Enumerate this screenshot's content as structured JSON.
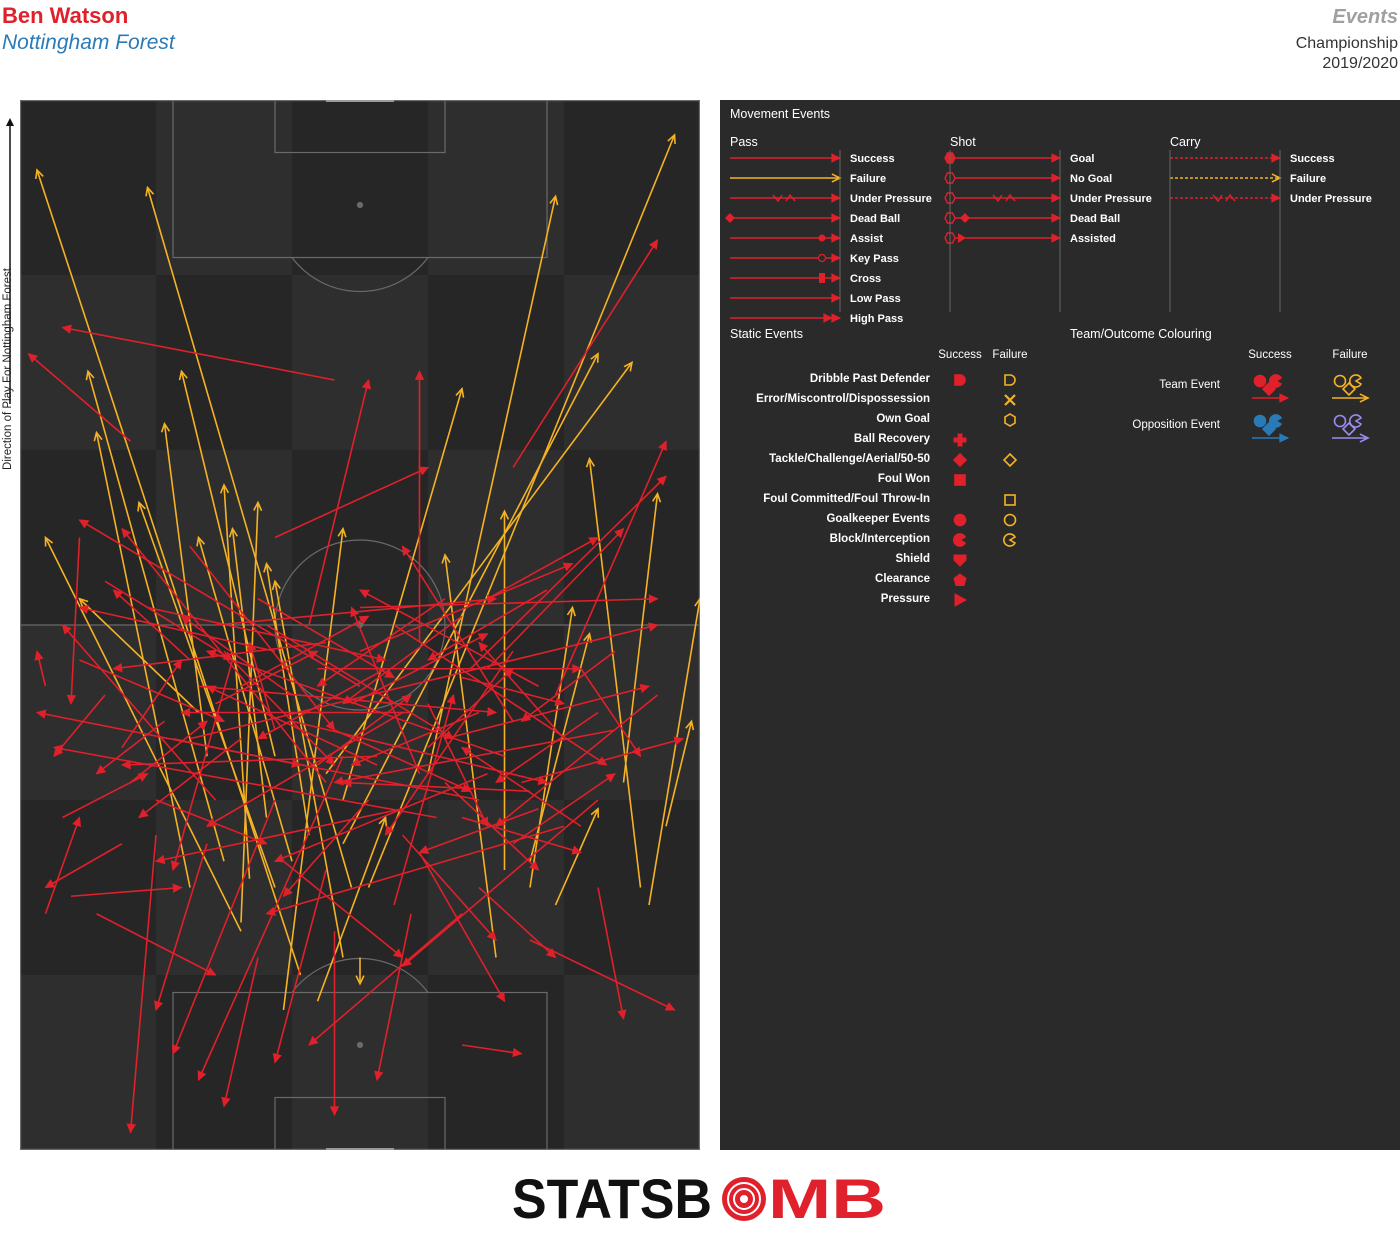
{
  "header": {
    "player": "Ben Watson",
    "team": "Nottingham Forest",
    "title": "Events",
    "competition": "Championship",
    "season": "2019/2020"
  },
  "direction_label": "Direction of Play For Nottingham Forest",
  "legend": {
    "movement_title": "Movement Events",
    "pass": {
      "title": "Pass",
      "items": [
        "Success",
        "Failure",
        "Under Pressure",
        "Dead Ball",
        "Assist",
        "Key Pass",
        "Cross",
        "Low Pass",
        "High Pass"
      ]
    },
    "shot": {
      "title": "Shot",
      "items": [
        "Goal",
        "No Goal",
        "Under Pressure",
        "Dead Ball",
        "Assisted"
      ]
    },
    "carry": {
      "title": "Carry",
      "items": [
        "Success",
        "Failure",
        "Under Pressure"
      ]
    },
    "static_title": "Static Events",
    "static_success": "Success",
    "static_failure": "Failure",
    "static_items": [
      "Dribble Past Defender",
      "Error/Miscontrol/Dispossession",
      "Own Goal",
      "Ball Recovery",
      "Tackle/Challenge/Aerial/50-50",
      "Foul Won",
      "Foul Committed/Foul Throw-In",
      "Goalkeeper Events",
      "Block/Interception",
      "Shield",
      "Clearance",
      "Pressure"
    ],
    "team_title": "Team/Outcome Colouring",
    "team_success": "Success",
    "team_failure": "Failure",
    "team_event": "Team Event",
    "opposition_event": "Opposition Event"
  },
  "colors": {
    "success": "#e0202a",
    "failure": "#f5b324",
    "opp_success": "#2a7ab8",
    "opp_failure": "#9a8cf0",
    "pitch_dark": "#262626",
    "pitch_light": "#2e2e2e",
    "line": "#6a6a6a",
    "legend_bg": "#2a2a2a"
  },
  "logo": {
    "left": "STATSB",
    "o": "O",
    "right": "MB"
  },
  "chart_data": {
    "type": "scatter",
    "description_units": "pitch coordinates: x 0-80 across (left to right), y 0-120 along direction of play (attacking goal at top)",
    "xlim": [
      0,
      80
    ],
    "ylim": [
      0,
      120
    ],
    "passes": [
      [
        33,
        20,
        2,
        112,
        "failure"
      ],
      [
        39,
        30,
        15,
        110,
        "failure"
      ],
      [
        41,
        30,
        77,
        116,
        "failure"
      ],
      [
        48,
        43,
        63,
        109,
        "failure"
      ],
      [
        38,
        35,
        68,
        91,
        "failure"
      ],
      [
        36,
        43,
        72,
        90,
        "failure"
      ],
      [
        30,
        45,
        19,
        89,
        "failure"
      ],
      [
        24,
        33,
        8,
        89,
        "failure"
      ],
      [
        22,
        45,
        17,
        83,
        "failure"
      ],
      [
        26,
        26,
        28,
        74,
        "failure"
      ],
      [
        38,
        40,
        52,
        87,
        "failure"
      ],
      [
        20,
        30,
        9,
        82,
        "failure"
      ],
      [
        29,
        38,
        25,
        71,
        "failure"
      ],
      [
        30,
        30,
        14,
        74,
        "failure"
      ],
      [
        32,
        33,
        21,
        70,
        "failure"
      ],
      [
        27,
        31,
        24,
        76,
        "failure"
      ],
      [
        71,
        42,
        75,
        75,
        "failure"
      ],
      [
        73,
        30,
        67,
        79,
        "failure"
      ],
      [
        74,
        28,
        80,
        63,
        "failure"
      ],
      [
        76,
        37,
        79,
        49,
        "failure"
      ],
      [
        57,
        32,
        57,
        73,
        "failure"
      ],
      [
        60,
        33,
        67,
        59,
        "failure"
      ],
      [
        63,
        28,
        68,
        39,
        "failure"
      ],
      [
        35,
        17,
        43,
        38,
        "failure"
      ],
      [
        31,
        16,
        38,
        71,
        "failure"
      ],
      [
        34,
        36,
        29,
        67,
        "failure"
      ],
      [
        21,
        50,
        7,
        63,
        "failure"
      ],
      [
        60,
        30,
        65,
        62,
        "failure"
      ],
      [
        38,
        22,
        30,
        65,
        "failure"
      ],
      [
        40,
        22,
        40,
        19,
        "failure"
      ],
      [
        56,
        22,
        50,
        68,
        "failure"
      ],
      [
        26,
        25,
        3,
        70,
        "failure"
      ],
      [
        37,
        88,
        5,
        94,
        "success"
      ],
      [
        13,
        81,
        1,
        91,
        "success"
      ],
      [
        58,
        78,
        75,
        104,
        "success"
      ],
      [
        47,
        58,
        47,
        89,
        "success"
      ],
      [
        63,
        52,
        76,
        81,
        "success"
      ],
      [
        53,
        55,
        76,
        77,
        "success"
      ],
      [
        36,
        42,
        12,
        71,
        "success"
      ],
      [
        40,
        53,
        7,
        72,
        "success"
      ],
      [
        30,
        57,
        7,
        62,
        "success"
      ],
      [
        46,
        50,
        19,
        50,
        "success"
      ],
      [
        54,
        40,
        2,
        50,
        "success"
      ],
      [
        49,
        38,
        4,
        46,
        "success"
      ],
      [
        57,
        45,
        22,
        57,
        "success"
      ],
      [
        61,
        53,
        40,
        64,
        "success"
      ],
      [
        36,
        58,
        11,
        55,
        "success"
      ],
      [
        60,
        41,
        38,
        42,
        "success"
      ],
      [
        55,
        43,
        30,
        33,
        "success"
      ],
      [
        45,
        39,
        16,
        33,
        "success"
      ],
      [
        64,
        37,
        29,
        27,
        "success"
      ],
      [
        70,
        48,
        37,
        42,
        "success"
      ],
      [
        75,
        52,
        56,
        37,
        "success"
      ],
      [
        68,
        40,
        45,
        21,
        "success"
      ],
      [
        40,
        62,
        75,
        63,
        "success"
      ],
      [
        23,
        60,
        56,
        63,
        "success"
      ],
      [
        35,
        55,
        66,
        55,
        "success"
      ],
      [
        20,
        47,
        75,
        60,
        "success"
      ],
      [
        21,
        53,
        56,
        50,
        "success"
      ],
      [
        38,
        45,
        21,
        8,
        "success"
      ],
      [
        30,
        40,
        18,
        11,
        "success"
      ],
      [
        16,
        36,
        13,
        2,
        "success"
      ],
      [
        9,
        27,
        23,
        20,
        "success"
      ],
      [
        6,
        29,
        19,
        30,
        "success"
      ],
      [
        52,
        38,
        66,
        34,
        "success"
      ],
      [
        54,
        30,
        63,
        22,
        "success"
      ],
      [
        47,
        34,
        57,
        17,
        "success"
      ],
      [
        68,
        30,
        71,
        15,
        "success"
      ],
      [
        52,
        12,
        59,
        11,
        "success"
      ],
      [
        60,
        24,
        77,
        16,
        "success"
      ],
      [
        34,
        60,
        41,
        88,
        "success"
      ],
      [
        12,
        35,
        3,
        30,
        "success"
      ],
      [
        3,
        27,
        7,
        38,
        "success"
      ],
      [
        3,
        53,
        2,
        57,
        "success"
      ],
      [
        7,
        70,
        6,
        51,
        "success"
      ],
      [
        25,
        56,
        18,
        32,
        "success"
      ],
      [
        29,
        60,
        51,
        47,
        "success"
      ],
      [
        48,
        51,
        55,
        37,
        "success"
      ],
      [
        18,
        47,
        33,
        44,
        "success"
      ],
      [
        42,
        45,
        12,
        44,
        "success"
      ],
      [
        44,
        60,
        69,
        44,
        "success"
      ],
      [
        50,
        47,
        74,
        53,
        "success"
      ],
      [
        31,
        33,
        45,
        22,
        "success"
      ],
      [
        37,
        25,
        37,
        4,
        "success"
      ],
      [
        46,
        27,
        42,
        8,
        "success"
      ],
      [
        36,
        32,
        30,
        10,
        "success"
      ],
      [
        44,
        28,
        51,
        52,
        "success"
      ],
      [
        23,
        40,
        5,
        60,
        "success"
      ],
      [
        40,
        57,
        65,
        67,
        "success"
      ],
      [
        55,
        55,
        71,
        71,
        "success"
      ],
      [
        30,
        70,
        48,
        78,
        "success"
      ],
      [
        45,
        50,
        22,
        37,
        "success"
      ],
      [
        22,
        35,
        16,
        16,
        "success"
      ],
      [
        28,
        22,
        24,
        5,
        "success"
      ],
      [
        52,
        27,
        34,
        12,
        "success"
      ],
      [
        58,
        49,
        45,
        69,
        "success"
      ],
      [
        10,
        65,
        25,
        56,
        "success"
      ],
      [
        50,
        63,
        35,
        53,
        "success"
      ],
      [
        15,
        62,
        43,
        56,
        "success"
      ],
      [
        59,
        42,
        78,
        47,
        "success"
      ],
      [
        20,
        69,
        37,
        48,
        "success"
      ],
      [
        32,
        49,
        62,
        42,
        "success"
      ],
      [
        58,
        57,
        43,
        36,
        "success"
      ],
      [
        42,
        44,
        22,
        53,
        "success"
      ],
      [
        5,
        38,
        15,
        43,
        "success"
      ],
      [
        62,
        64,
        48,
        56,
        "success"
      ],
      [
        17,
        49,
        9,
        43,
        "success"
      ],
      [
        26,
        47,
        14,
        38,
        "success"
      ],
      [
        66,
        37,
        52,
        46,
        "success"
      ],
      [
        47,
        43,
        39,
        62,
        "success"
      ],
      [
        52,
        61,
        38,
        51,
        "success"
      ],
      [
        12,
        46,
        19,
        56,
        "success"
      ],
      [
        24,
        57,
        37,
        44,
        "success"
      ],
      [
        39,
        51,
        55,
        59,
        "success"
      ],
      [
        64,
        47,
        54,
        58,
        "success"
      ],
      [
        54,
        50,
        39,
        44,
        "success"
      ],
      [
        7,
        56,
        24,
        49,
        "success"
      ],
      [
        32,
        52,
        19,
        61,
        "success"
      ],
      [
        70,
        57,
        59,
        49,
        "success"
      ],
      [
        28,
        63,
        44,
        54,
        "success"
      ],
      [
        45,
        36,
        56,
        24,
        "success"
      ],
      [
        23,
        51,
        35,
        57,
        "success"
      ],
      [
        55,
        63,
        68,
        70,
        "success"
      ],
      [
        16,
        40,
        29,
        35,
        "success"
      ],
      [
        61,
        39,
        47,
        34,
        "success"
      ],
      [
        37,
        48,
        53,
        41,
        "success"
      ],
      [
        66,
        55,
        73,
        45,
        "success"
      ],
      [
        30,
        48,
        27,
        58,
        "success"
      ],
      [
        48,
        46,
        58,
        55,
        "success"
      ],
      [
        43,
        55,
        28,
        47,
        "success"
      ],
      [
        20,
        56,
        11,
        64,
        "success"
      ],
      [
        52,
        54,
        64,
        51,
        "success"
      ],
      [
        13,
        42,
        22,
        49,
        "success"
      ],
      [
        58,
        35,
        70,
        43,
        "success"
      ],
      [
        35,
        44,
        46,
        52,
        "success"
      ],
      [
        26,
        53,
        41,
        61,
        "success"
      ],
      [
        68,
        50,
        56,
        42,
        "success"
      ],
      [
        41,
        40,
        31,
        29,
        "success"
      ],
      [
        50,
        42,
        61,
        32,
        "success"
      ],
      [
        10,
        52,
        4,
        45,
        "success"
      ]
    ]
  }
}
